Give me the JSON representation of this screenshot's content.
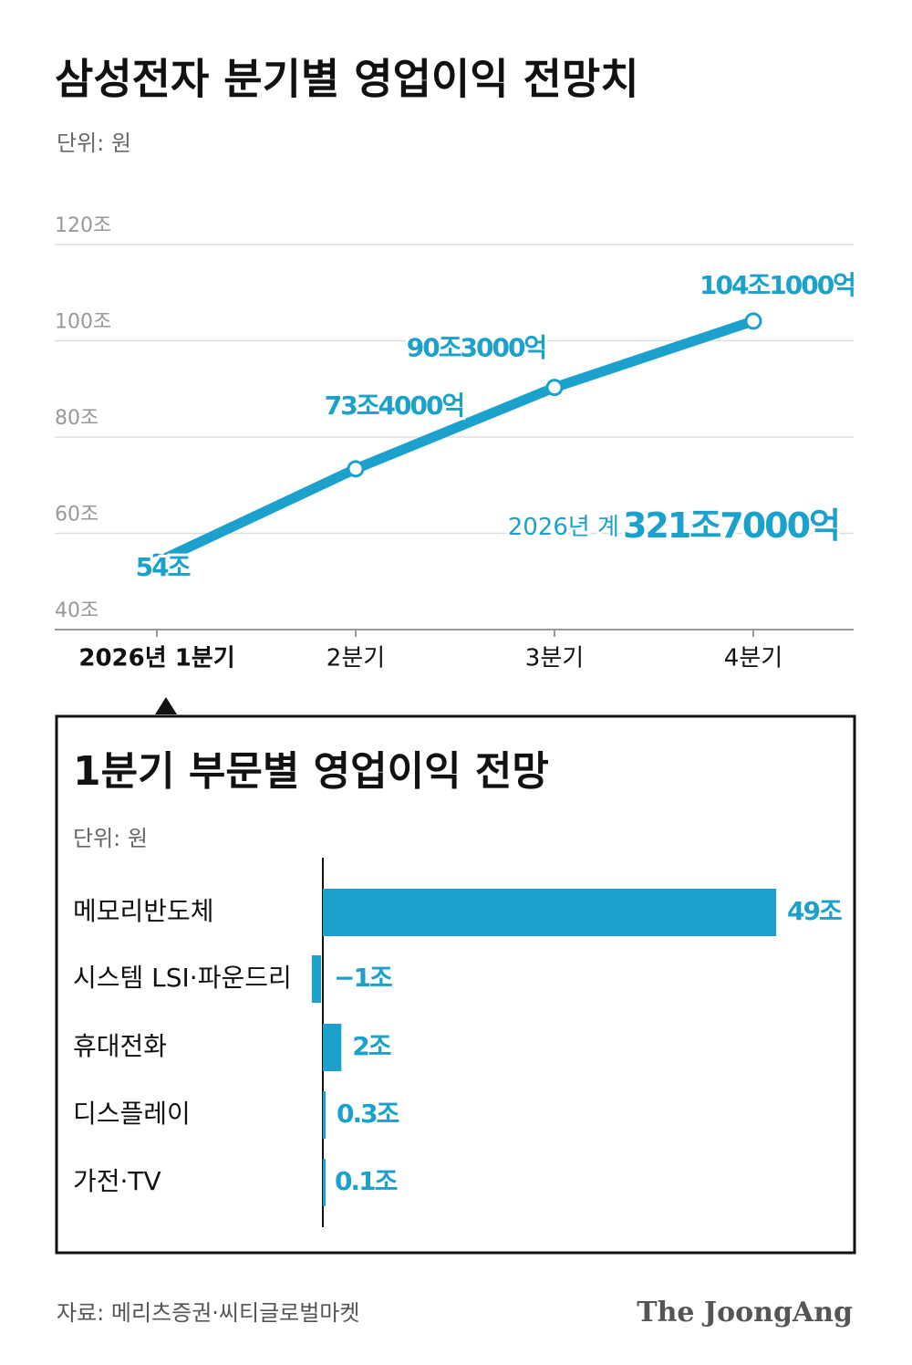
{
  "chart_data": [
    {
      "type": "line",
      "title": "삼성전자 분기별 영업이익 전망치",
      "subtitle": "단위: 원",
      "categories": [
        "2026년 1분기",
        "2분기",
        "3분기",
        "4분기"
      ],
      "values": [
        54,
        73.4,
        90.3,
        104.1
      ],
      "value_labels": [
        "54조",
        "73조4000억",
        "90조3000억",
        "104조1000억"
      ],
      "color": "#1ba1cb",
      "ylim": [
        40,
        120
      ],
      "yticks": [
        {
          "value": 40,
          "label": "40조"
        },
        {
          "value": 60,
          "label": "60조"
        },
        {
          "value": 80,
          "label": "80조"
        },
        {
          "value": 100,
          "label": "100조"
        },
        {
          "value": 120,
          "label": "120조"
        }
      ],
      "grid": true,
      "annotation": {
        "label": "2026년 계",
        "total": "321조7000억"
      }
    },
    {
      "type": "hbar",
      "title": "1분기 부문별 영업이익 전망",
      "subtitle": "단위: 원",
      "categories": [
        "메모리반도체",
        "시스템 LSI·파운드리",
        "휴대전화",
        "디스플레이",
        "가전·TV"
      ],
      "values": [
        49,
        -1,
        2,
        0.3,
        0.1
      ],
      "value_labels": [
        "49조",
        "−1조",
        "2조",
        "0.3조",
        "0.1조"
      ],
      "color": "#1ba1cb"
    }
  ],
  "source": "자료: 메리츠증권·씨티글로벌마켓",
  "logo": "The JoongAng"
}
